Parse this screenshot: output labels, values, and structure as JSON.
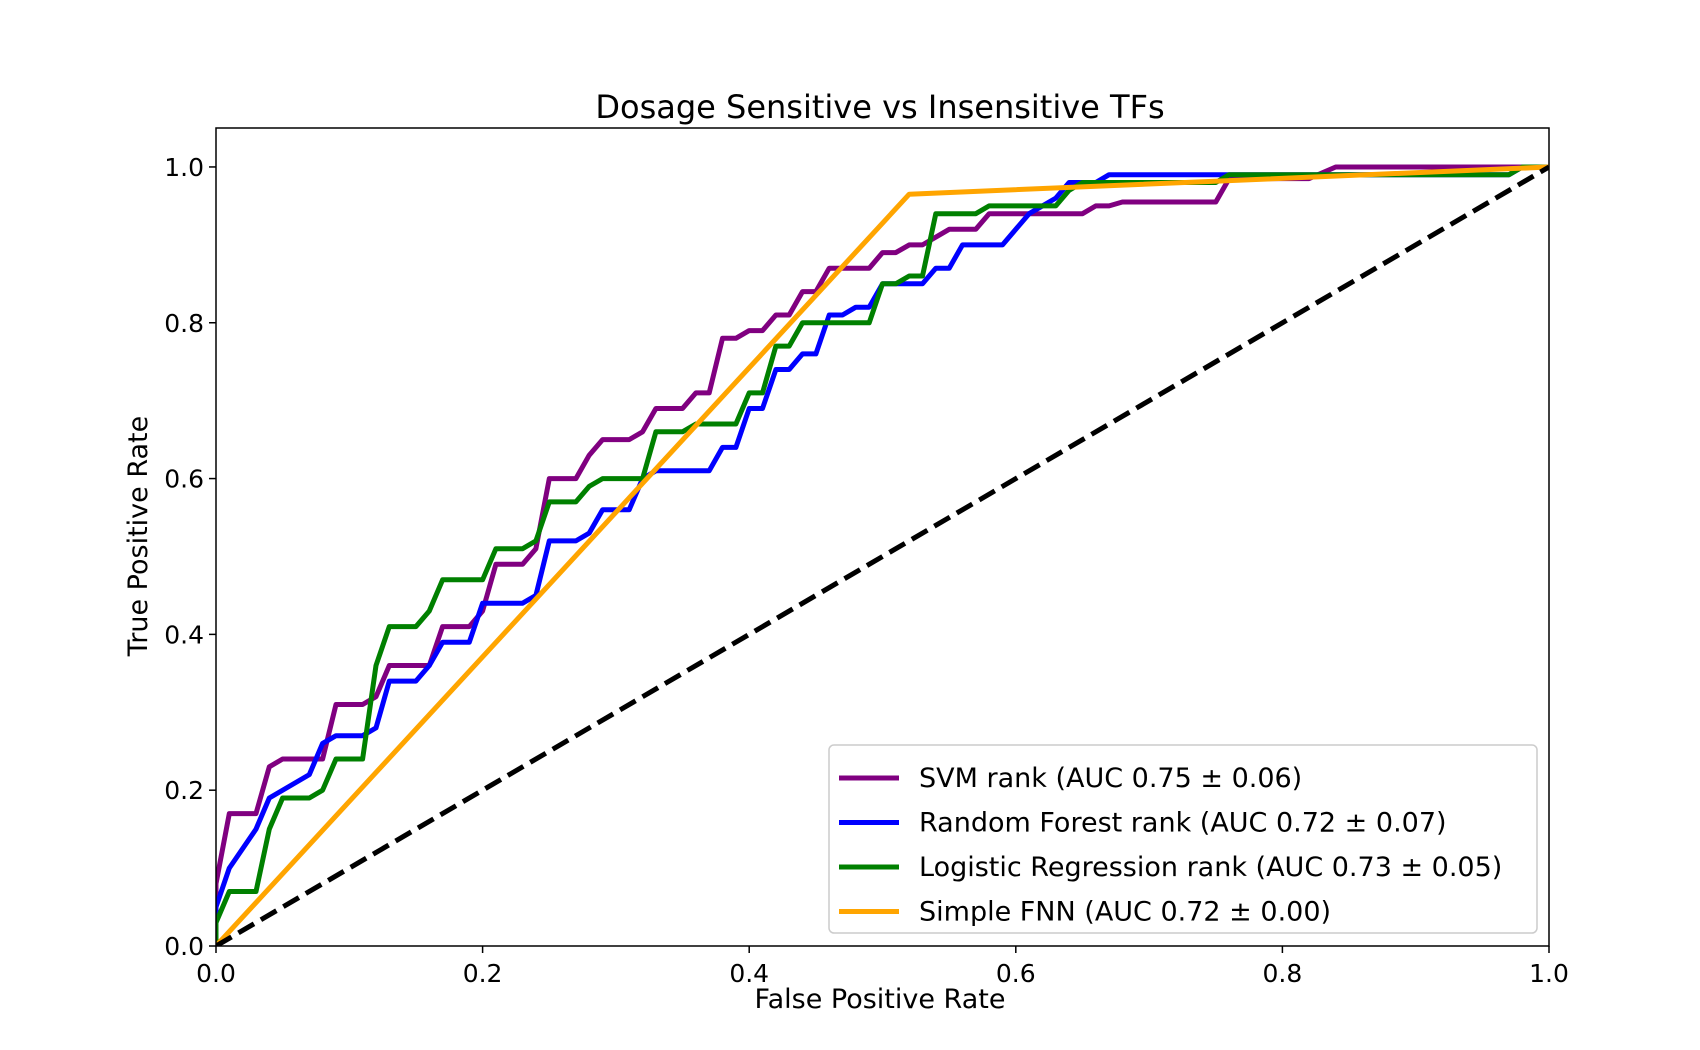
{
  "chart_data": {
    "type": "line",
    "title": "Dosage Sensitive vs Insensitive TFs",
    "xlabel": "False Positive Rate",
    "ylabel": "True Positive Rate",
    "xlim": [
      0.0,
      1.0
    ],
    "ylim": [
      0.0,
      1.05
    ],
    "x_ticks": [
      "0.0",
      "0.2",
      "0.4",
      "0.6",
      "0.8",
      "1.0"
    ],
    "y_ticks": [
      "0.0",
      "0.2",
      "0.4",
      "0.6",
      "0.8",
      "1.0"
    ],
    "grid": false,
    "legend_position": "bottom-right",
    "series": [
      {
        "name": "SVM rank (AUC 0.75 ± 0.06)",
        "color": "#800080",
        "points": [
          [
            0.0,
            0.0
          ],
          [
            0.0,
            0.08
          ],
          [
            0.01,
            0.17
          ],
          [
            0.03,
            0.17
          ],
          [
            0.04,
            0.23
          ],
          [
            0.05,
            0.24
          ],
          [
            0.08,
            0.24
          ],
          [
            0.09,
            0.31
          ],
          [
            0.11,
            0.31
          ],
          [
            0.12,
            0.32
          ],
          [
            0.13,
            0.36
          ],
          [
            0.16,
            0.36
          ],
          [
            0.17,
            0.41
          ],
          [
            0.19,
            0.41
          ],
          [
            0.2,
            0.43
          ],
          [
            0.21,
            0.49
          ],
          [
            0.23,
            0.49
          ],
          [
            0.24,
            0.51
          ],
          [
            0.25,
            0.6
          ],
          [
            0.27,
            0.6
          ],
          [
            0.28,
            0.63
          ],
          [
            0.29,
            0.65
          ],
          [
            0.31,
            0.65
          ],
          [
            0.32,
            0.66
          ],
          [
            0.33,
            0.69
          ],
          [
            0.35,
            0.69
          ],
          [
            0.36,
            0.71
          ],
          [
            0.37,
            0.71
          ],
          [
            0.38,
            0.78
          ],
          [
            0.39,
            0.78
          ],
          [
            0.4,
            0.79
          ],
          [
            0.41,
            0.79
          ],
          [
            0.42,
            0.81
          ],
          [
            0.43,
            0.81
          ],
          [
            0.44,
            0.84
          ],
          [
            0.45,
            0.84
          ],
          [
            0.46,
            0.87
          ],
          [
            0.49,
            0.87
          ],
          [
            0.5,
            0.89
          ],
          [
            0.51,
            0.89
          ],
          [
            0.52,
            0.9
          ],
          [
            0.53,
            0.9
          ],
          [
            0.55,
            0.92
          ],
          [
            0.57,
            0.92
          ],
          [
            0.58,
            0.94
          ],
          [
            0.65,
            0.94
          ],
          [
            0.66,
            0.95
          ],
          [
            0.67,
            0.95
          ],
          [
            0.68,
            0.955
          ],
          [
            0.75,
            0.955
          ],
          [
            0.76,
            0.985
          ],
          [
            0.82,
            0.985
          ],
          [
            0.84,
            1.0
          ],
          [
            1.0,
            1.0
          ]
        ]
      },
      {
        "name": "Random Forest rank (AUC 0.72 ± 0.07)",
        "color": "#0000ff",
        "points": [
          [
            0.0,
            0.0
          ],
          [
            0.0,
            0.05
          ],
          [
            0.01,
            0.1
          ],
          [
            0.03,
            0.15
          ],
          [
            0.04,
            0.19
          ],
          [
            0.07,
            0.22
          ],
          [
            0.08,
            0.26
          ],
          [
            0.09,
            0.27
          ],
          [
            0.11,
            0.27
          ],
          [
            0.12,
            0.28
          ],
          [
            0.13,
            0.34
          ],
          [
            0.15,
            0.34
          ],
          [
            0.16,
            0.36
          ],
          [
            0.17,
            0.39
          ],
          [
            0.19,
            0.39
          ],
          [
            0.2,
            0.44
          ],
          [
            0.23,
            0.44
          ],
          [
            0.24,
            0.45
          ],
          [
            0.25,
            0.52
          ],
          [
            0.27,
            0.52
          ],
          [
            0.28,
            0.53
          ],
          [
            0.29,
            0.56
          ],
          [
            0.31,
            0.56
          ],
          [
            0.32,
            0.6
          ],
          [
            0.33,
            0.61
          ],
          [
            0.37,
            0.61
          ],
          [
            0.38,
            0.64
          ],
          [
            0.39,
            0.64
          ],
          [
            0.4,
            0.69
          ],
          [
            0.41,
            0.69
          ],
          [
            0.42,
            0.74
          ],
          [
            0.43,
            0.74
          ],
          [
            0.44,
            0.76
          ],
          [
            0.45,
            0.76
          ],
          [
            0.46,
            0.81
          ],
          [
            0.47,
            0.81
          ],
          [
            0.48,
            0.82
          ],
          [
            0.49,
            0.82
          ],
          [
            0.5,
            0.85
          ],
          [
            0.53,
            0.85
          ],
          [
            0.54,
            0.87
          ],
          [
            0.55,
            0.87
          ],
          [
            0.56,
            0.9
          ],
          [
            0.59,
            0.9
          ],
          [
            0.61,
            0.94
          ],
          [
            0.63,
            0.96
          ],
          [
            0.64,
            0.98
          ],
          [
            0.66,
            0.98
          ],
          [
            0.67,
            0.99
          ],
          [
            0.76,
            0.99
          ],
          [
            0.77,
            0.99
          ],
          [
            0.97,
            0.99
          ],
          [
            0.98,
            1.0
          ],
          [
            1.0,
            1.0
          ]
        ]
      },
      {
        "name": "Logistic Regression rank (AUC 0.73 ± 0.05)",
        "color": "#008000",
        "points": [
          [
            0.0,
            0.0
          ],
          [
            0.0,
            0.03
          ],
          [
            0.01,
            0.07
          ],
          [
            0.03,
            0.07
          ],
          [
            0.04,
            0.15
          ],
          [
            0.05,
            0.19
          ],
          [
            0.07,
            0.19
          ],
          [
            0.08,
            0.2
          ],
          [
            0.09,
            0.24
          ],
          [
            0.11,
            0.24
          ],
          [
            0.12,
            0.36
          ],
          [
            0.13,
            0.41
          ],
          [
            0.15,
            0.41
          ],
          [
            0.16,
            0.43
          ],
          [
            0.17,
            0.47
          ],
          [
            0.2,
            0.47
          ],
          [
            0.21,
            0.51
          ],
          [
            0.23,
            0.51
          ],
          [
            0.24,
            0.52
          ],
          [
            0.25,
            0.57
          ],
          [
            0.27,
            0.57
          ],
          [
            0.28,
            0.59
          ],
          [
            0.29,
            0.6
          ],
          [
            0.32,
            0.6
          ],
          [
            0.33,
            0.66
          ],
          [
            0.35,
            0.66
          ],
          [
            0.36,
            0.67
          ],
          [
            0.39,
            0.67
          ],
          [
            0.4,
            0.71
          ],
          [
            0.41,
            0.71
          ],
          [
            0.42,
            0.77
          ],
          [
            0.43,
            0.77
          ],
          [
            0.44,
            0.8
          ],
          [
            0.49,
            0.8
          ],
          [
            0.5,
            0.85
          ],
          [
            0.51,
            0.85
          ],
          [
            0.52,
            0.86
          ],
          [
            0.53,
            0.86
          ],
          [
            0.54,
            0.94
          ],
          [
            0.57,
            0.94
          ],
          [
            0.58,
            0.95
          ],
          [
            0.63,
            0.95
          ],
          [
            0.64,
            0.97
          ],
          [
            0.65,
            0.98
          ],
          [
            0.75,
            0.98
          ],
          [
            0.76,
            0.99
          ],
          [
            0.97,
            0.99
          ],
          [
            0.98,
            1.0
          ],
          [
            1.0,
            1.0
          ]
        ]
      },
      {
        "name": "Simple FNN (AUC 0.72 ± 0.00)",
        "color": "#ffa500",
        "points": [
          [
            0.0,
            0.0
          ],
          [
            0.52,
            0.965
          ],
          [
            1.0,
            1.0
          ]
        ]
      }
    ],
    "reference_line": {
      "style": "dashed",
      "color": "#000000",
      "points": [
        [
          0.0,
          0.0
        ],
        [
          1.0,
          1.0
        ]
      ]
    }
  }
}
